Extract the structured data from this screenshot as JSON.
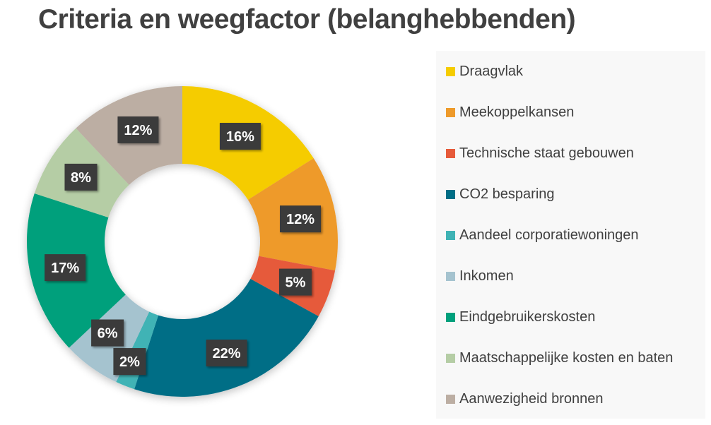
{
  "chart_data": {
    "type": "pie",
    "variant": "doughnut",
    "title": "Criteria en weegfactor (belanghebbenden)",
    "unit": "%",
    "start": "top, clockwise",
    "legend_position": "right",
    "categories": [
      "Draagvlak",
      "Meekoppelkansen",
      "Technische staat gebouwen",
      "CO2 besparing",
      "Aandeel corporatiewoningen",
      "Inkomen",
      "Eindgebruikerskosten",
      "Maatschappelijke kosten en baten",
      "Aanwezigheid bronnen"
    ],
    "values": [
      16,
      12,
      5,
      22,
      2,
      6,
      17,
      8,
      12
    ],
    "data_labels": [
      "16%",
      "12%",
      "5%",
      "22%",
      "2%",
      "6%",
      "17%",
      "8%",
      "12%"
    ],
    "colors": [
      "#f5cc00",
      "#ee9a2a",
      "#e65a3a",
      "#006e86",
      "#3fb3b5",
      "#a5c3cf",
      "#00a07c",
      "#b5cda5",
      "#bcaea3"
    ]
  }
}
